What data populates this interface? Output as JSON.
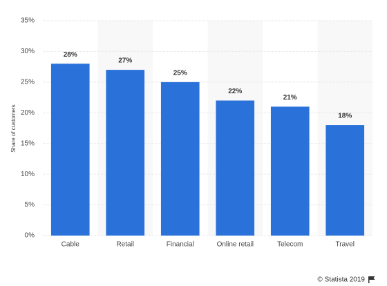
{
  "chart_data": {
    "type": "bar",
    "y_label": "Share of customers",
    "categories": [
      "Cable",
      "Retail",
      "Financial",
      "Online retail",
      "Telecom",
      "Travel"
    ],
    "values": [
      28,
      27,
      25,
      22,
      21,
      18
    ],
    "value_labels": [
      "28%",
      "27%",
      "25%",
      "22%",
      "21%",
      "18%"
    ],
    "color": "#2a72da",
    "ylim": [
      0,
      35
    ],
    "yticks": [
      {
        "value": 0,
        "label": "0%"
      },
      {
        "value": 5,
        "label": "5%"
      },
      {
        "value": 10,
        "label": "10%"
      },
      {
        "value": 15,
        "label": "15%"
      },
      {
        "value": 20,
        "label": "20%"
      },
      {
        "value": 25,
        "label": "25%"
      },
      {
        "value": 30,
        "label": "30%"
      },
      {
        "value": 35,
        "label": "35%"
      }
    ],
    "grid": true
  },
  "footer": "© Statista 2019"
}
